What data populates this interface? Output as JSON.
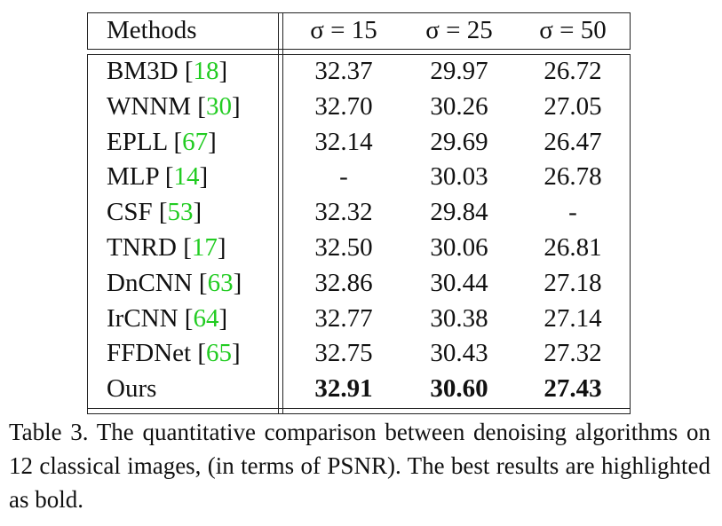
{
  "table": {
    "header": [
      "Methods",
      "σ = 15",
      "σ = 25",
      "σ = 50"
    ],
    "rows": [
      {
        "method": "BM3D",
        "ref": "18",
        "values": [
          "32.37",
          "29.97",
          "26.72"
        ]
      },
      {
        "method": "WNNM",
        "ref": "30",
        "values": [
          "32.70",
          "30.26",
          "27.05"
        ]
      },
      {
        "method": "EPLL",
        "ref": "67",
        "values": [
          "32.14",
          "29.69",
          "26.47"
        ]
      },
      {
        "method": "MLP",
        "ref": "14",
        "values": [
          "-",
          "30.03",
          "26.78"
        ]
      },
      {
        "method": "CSF",
        "ref": "53",
        "values": [
          "32.32",
          "29.84",
          "-"
        ]
      },
      {
        "method": "TNRD",
        "ref": "17",
        "values": [
          "32.50",
          "30.06",
          "26.81"
        ]
      },
      {
        "method": "DnCNN",
        "ref": "63",
        "values": [
          "32.86",
          "30.44",
          "27.18"
        ]
      },
      {
        "method": "IrCNN",
        "ref": "64",
        "values": [
          "32.77",
          "30.38",
          "27.14"
        ]
      },
      {
        "method": "FFDNet",
        "ref": "65",
        "values": [
          "32.75",
          "30.43",
          "27.32"
        ]
      },
      {
        "method": "Ours",
        "values": [
          "32.91",
          "30.60",
          "27.43"
        ],
        "bold": true
      }
    ]
  },
  "caption": "Table 3. The quantitative comparison between denoising algorithms on 12 classical images, (in terms of PSNR). The best results are highlighted as bold."
}
